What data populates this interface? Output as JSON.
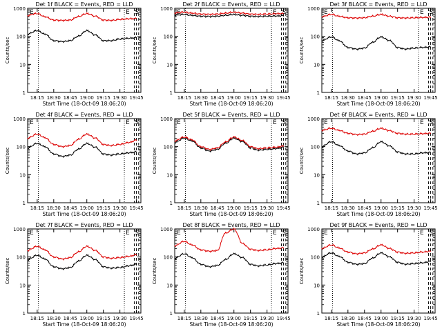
{
  "chart_data": [
    {
      "type": "line",
      "title": "Det 1f BLACK = Events, RED = LLD",
      "ylabel": "Counts/sec",
      "xlabel": "Start Time (18-Oct-09 18:06:20)",
      "yscale": "log",
      "ylim": [
        1,
        1000
      ],
      "series": [
        {
          "name": "BLACK",
          "color": "#000000",
          "x": [
            "18:06",
            "18:15",
            "18:22",
            "18:30",
            "18:38",
            "18:45",
            "18:52",
            "19:00",
            "19:08",
            "19:15",
            "19:22",
            "19:30",
            "19:38",
            "19:45"
          ],
          "values": [
            120,
            160,
            120,
            70,
            65,
            70,
            100,
            160,
            110,
            70,
            70,
            80,
            85,
            90
          ]
        },
        {
          "name": "RED",
          "color": "#dd0000",
          "x": [
            "18:06",
            "18:15",
            "18:22",
            "18:30",
            "18:38",
            "18:45",
            "18:52",
            "19:00",
            "19:08",
            "19:15",
            "19:22",
            "19:30",
            "19:38",
            "19:45"
          ],
          "values": [
            550,
            650,
            500,
            380,
            370,
            380,
            500,
            650,
            520,
            380,
            370,
            400,
            420,
            430
          ]
        }
      ],
      "markers": [
        "E",
        "S"
      ]
    },
    {
      "type": "line",
      "title": "Det 2f BLACK = Events, RED = LLD",
      "ylabel": "Counts/sec",
      "xlabel": "Start Time (18-Oct-09 18:06:20)",
      "yscale": "log",
      "ylim": [
        1,
        1000
      ],
      "series": [
        {
          "name": "BLACK",
          "color": "#000000",
          "x": [
            "18:06",
            "18:15",
            "18:22",
            "18:30",
            "18:38",
            "18:45",
            "18:52",
            "19:00",
            "19:08",
            "19:15",
            "19:22",
            "19:30",
            "19:38",
            "19:45"
          ],
          "values": [
            570,
            600,
            560,
            520,
            510,
            520,
            560,
            600,
            560,
            520,
            510,
            520,
            530,
            540
          ]
        },
        {
          "name": "RED",
          "color": "#dd0000",
          "x": [
            "18:06",
            "18:15",
            "18:22",
            "18:30",
            "18:38",
            "18:45",
            "18:52",
            "19:00",
            "19:08",
            "19:15",
            "19:22",
            "19:30",
            "19:38",
            "19:45"
          ],
          "values": [
            680,
            720,
            670,
            620,
            610,
            620,
            670,
            720,
            670,
            620,
            610,
            620,
            640,
            650
          ]
        }
      ],
      "markers": [
        "E",
        "S"
      ]
    },
    {
      "type": "line",
      "title": "Det 3f BLACK = Events, RED = LLD",
      "ylabel": "Counts/sec",
      "xlabel": "Start Time (18-Oct-09 18:06:20)",
      "yscale": "log",
      "ylim": [
        1,
        1000
      ],
      "series": [
        {
          "name": "BLACK",
          "color": "#000000",
          "x": [
            "18:06",
            "18:15",
            "18:22",
            "18:30",
            "18:38",
            "18:45",
            "18:52",
            "19:00",
            "19:08",
            "19:15",
            "19:22",
            "19:30",
            "19:38",
            "19:45"
          ],
          "values": [
            70,
            95,
            70,
            40,
            35,
            38,
            60,
            95,
            70,
            40,
            35,
            38,
            40,
            42
          ]
        },
        {
          "name": "RED",
          "color": "#dd0000",
          "x": [
            "18:06",
            "18:15",
            "18:22",
            "18:30",
            "18:38",
            "18:45",
            "18:52",
            "19:00",
            "19:08",
            "19:15",
            "19:22",
            "19:30",
            "19:38",
            "19:45"
          ],
          "values": [
            500,
            600,
            520,
            460,
            450,
            460,
            520,
            600,
            520,
            460,
            450,
            460,
            470,
            480
          ]
        }
      ],
      "markers": [
        "E",
        "S"
      ]
    },
    {
      "type": "line",
      "title": "Det 4f BLACK = Events, RED = LLD",
      "ylabel": "Counts/sec",
      "xlabel": "Start Time (18-Oct-09 18:06:20)",
      "yscale": "log",
      "ylim": [
        1,
        1000
      ],
      "series": [
        {
          "name": "BLACK",
          "color": "#000000",
          "x": [
            "18:06",
            "18:15",
            "18:22",
            "18:30",
            "18:38",
            "18:45",
            "18:52",
            "19:00",
            "19:08",
            "19:15",
            "19:22",
            "19:30",
            "19:38",
            "19:45"
          ],
          "values": [
            90,
            130,
            100,
            55,
            45,
            50,
            80,
            130,
            95,
            55,
            50,
            55,
            60,
            65
          ]
        },
        {
          "name": "RED",
          "color": "#dd0000",
          "x": [
            "18:06",
            "18:15",
            "18:22",
            "18:30",
            "18:38",
            "18:45",
            "18:52",
            "19:00",
            "19:08",
            "19:15",
            "19:22",
            "19:30",
            "19:38",
            "19:45"
          ],
          "values": [
            200,
            280,
            210,
            120,
            100,
            110,
            180,
            280,
            200,
            120,
            110,
            120,
            140,
            170
          ]
        }
      ],
      "markers": [
        "E",
        "S"
      ]
    },
    {
      "type": "line",
      "title": "Det 5f BLACK = Events, RED = LLD",
      "ylabel": "Counts/sec",
      "xlabel": "Start Time (18-Oct-09 18:06:20)",
      "yscale": "log",
      "ylim": [
        1,
        1000
      ],
      "series": [
        {
          "name": "BLACK",
          "color": "#000000",
          "x": [
            "18:06",
            "18:15",
            "18:22",
            "18:30",
            "18:38",
            "18:45",
            "18:52",
            "19:00",
            "19:08",
            "19:15",
            "19:22",
            "19:30",
            "19:38",
            "19:45"
          ],
          "values": [
            140,
            200,
            160,
            90,
            70,
            80,
            130,
            200,
            150,
            90,
            75,
            80,
            85,
            95
          ]
        },
        {
          "name": "RED",
          "color": "#dd0000",
          "x": [
            "18:06",
            "18:15",
            "18:22",
            "18:30",
            "18:38",
            "18:45",
            "18:52",
            "19:00",
            "19:08",
            "19:15",
            "19:22",
            "19:30",
            "19:38",
            "19:45"
          ],
          "values": [
            160,
            220,
            175,
            100,
            80,
            90,
            145,
            220,
            165,
            100,
            85,
            90,
            95,
            105
          ]
        }
      ],
      "markers": [
        "E",
        "S"
      ]
    },
    {
      "type": "line",
      "title": "Det 6f BLACK = Events, RED = LLD",
      "ylabel": "Counts/sec",
      "xlabel": "Start Time (18-Oct-09 18:06:20)",
      "yscale": "log",
      "ylim": [
        1,
        1000
      ],
      "series": [
        {
          "name": "BLACK",
          "color": "#000000",
          "x": [
            "18:06",
            "18:15",
            "18:22",
            "18:30",
            "18:38",
            "18:45",
            "18:52",
            "19:00",
            "19:08",
            "19:15",
            "19:22",
            "19:30",
            "19:38",
            "19:45"
          ],
          "values": [
            100,
            150,
            110,
            70,
            55,
            60,
            90,
            150,
            105,
            65,
            55,
            55,
            60,
            62
          ]
        },
        {
          "name": "RED",
          "color": "#dd0000",
          "x": [
            "18:06",
            "18:15",
            "18:22",
            "18:30",
            "18:38",
            "18:45",
            "18:52",
            "19:00",
            "19:08",
            "19:15",
            "19:22",
            "19:30",
            "19:38",
            "19:45"
          ],
          "values": [
            380,
            450,
            380,
            300,
            270,
            280,
            350,
            450,
            370,
            300,
            280,
            280,
            290,
            300
          ]
        }
      ],
      "markers": [
        "E",
        "S"
      ]
    },
    {
      "type": "line",
      "title": "Det 7f BLACK = Events, RED = LLD",
      "ylabel": "Counts/sec",
      "xlabel": "Start Time (18-Oct-09 18:06:20)",
      "yscale": "log",
      "ylim": [
        1,
        1000
      ],
      "series": [
        {
          "name": "BLACK",
          "color": "#000000",
          "x": [
            "18:06",
            "18:15",
            "18:22",
            "18:30",
            "18:38",
            "18:45",
            "18:52",
            "19:00",
            "19:08",
            "19:15",
            "19:22",
            "19:30",
            "19:38",
            "19:45"
          ],
          "values": [
            80,
            115,
            85,
            45,
            38,
            42,
            70,
            115,
            80,
            45,
            40,
            42,
            48,
            55
          ]
        },
        {
          "name": "RED",
          "color": "#dd0000",
          "x": [
            "18:06",
            "18:15",
            "18:22",
            "18:30",
            "18:38",
            "18:45",
            "18:52",
            "19:00",
            "19:08",
            "19:15",
            "19:22",
            "19:30",
            "19:38",
            "19:45"
          ],
          "values": [
            170,
            240,
            180,
            100,
            85,
            95,
            150,
            240,
            170,
            100,
            90,
            95,
            105,
            120
          ]
        }
      ],
      "markers": [
        "E",
        "S"
      ]
    },
    {
      "type": "line",
      "title": "Det 8f BLACK = Events, RED = LLD",
      "ylabel": "Counts/sec",
      "xlabel": "Start Time (18-Oct-09 18:06:20)",
      "yscale": "log",
      "ylim": [
        1,
        1000
      ],
      "series": [
        {
          "name": "BLACK",
          "color": "#000000",
          "x": [
            "18:06",
            "18:15",
            "18:22",
            "18:30",
            "18:38",
            "18:45",
            "18:52",
            "19:00",
            "19:08",
            "19:15",
            "19:22",
            "19:30",
            "19:38",
            "19:45"
          ],
          "values": [
            90,
            130,
            95,
            55,
            45,
            50,
            80,
            130,
            95,
            55,
            48,
            52,
            58,
            62
          ]
        },
        {
          "name": "RED",
          "color": "#dd0000",
          "x": [
            "18:06",
            "18:15",
            "18:22",
            "18:30",
            "18:38",
            "18:45",
            "18:52",
            "19:00",
            "19:08",
            "19:15",
            "19:22",
            "19:30",
            "19:38",
            "19:45"
          ],
          "values": [
            250,
            360,
            270,
            180,
            160,
            170,
            700,
            1000,
            300,
            190,
            170,
            180,
            200,
            210
          ]
        }
      ],
      "markers": [
        "E",
        "S"
      ]
    },
    {
      "type": "line",
      "title": "Det 9f BLACK = Events, RED = LLD",
      "ylabel": "Counts/sec",
      "xlabel": "Start Time (18-Oct-09 18:06:20)",
      "yscale": "log",
      "ylim": [
        1,
        1000
      ],
      "series": [
        {
          "name": "BLACK",
          "color": "#000000",
          "x": [
            "18:06",
            "18:15",
            "18:22",
            "18:30",
            "18:38",
            "18:45",
            "18:52",
            "19:00",
            "19:08",
            "19:15",
            "19:22",
            "19:30",
            "19:38",
            "19:45"
          ],
          "values": [
            100,
            140,
            105,
            65,
            55,
            58,
            90,
            140,
            100,
            65,
            55,
            58,
            62,
            70
          ]
        },
        {
          "name": "RED",
          "color": "#dd0000",
          "x": [
            "18:06",
            "18:15",
            "18:22",
            "18:30",
            "18:38",
            "18:45",
            "18:52",
            "19:00",
            "19:08",
            "19:15",
            "19:22",
            "19:30",
            "19:38",
            "19:45"
          ],
          "values": [
            200,
            270,
            210,
            150,
            130,
            140,
            190,
            270,
            200,
            150,
            135,
            140,
            150,
            160
          ]
        }
      ],
      "markers": [
        "E",
        "S"
      ]
    }
  ],
  "axes": {
    "x_ticks": [
      "18:15",
      "18:30",
      "18:45",
      "19:00",
      "19:15",
      "19:30",
      "19:45"
    ],
    "y_ticks": [
      "1",
      "10",
      "100",
      "1000"
    ]
  }
}
